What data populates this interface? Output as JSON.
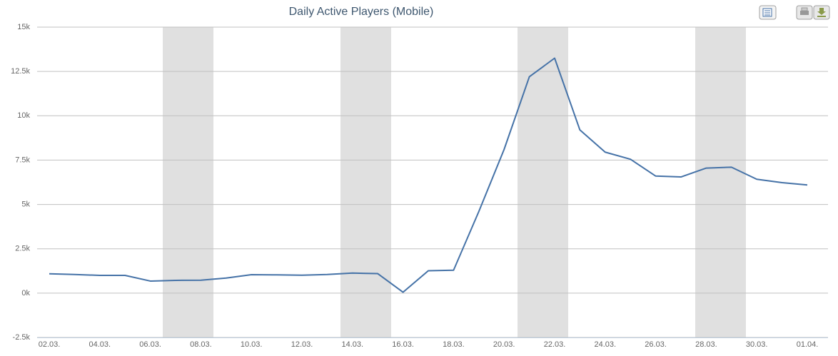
{
  "chart_data": {
    "type": "line",
    "title": "Daily Active Players (Mobile)",
    "categories": [
      "02.03.",
      null,
      "04.03.",
      null,
      "06.03.",
      null,
      "08.03.",
      null,
      "10.03.",
      null,
      "12.03.",
      null,
      "14.03.",
      null,
      "16.03.",
      null,
      "18.03.",
      null,
      "20.03.",
      null,
      "22.03.",
      null,
      "24.03.",
      null,
      "26.03.",
      null,
      "28.03.",
      null,
      "30.03.",
      null,
      "01.04."
    ],
    "series": [
      {
        "color": "#4572a7",
        "values": [
          1090,
          1050,
          1000,
          1000,
          680,
          720,
          730,
          850,
          1040,
          1030,
          1010,
          1050,
          1130,
          1100,
          50,
          1260,
          1290,
          4600,
          8100,
          12200,
          13250,
          9200,
          7950,
          7550,
          6600,
          6550,
          7050,
          7100,
          6420,
          6230,
          6100
        ]
      }
    ],
    "ylim": [
      -2500,
      15000
    ],
    "yticks": [
      {
        "value": -2500,
        "label": "-2.5k"
      },
      {
        "value": 0,
        "label": "0k"
      },
      {
        "value": 2500,
        "label": "2.5k"
      },
      {
        "value": 5000,
        "label": "5k"
      },
      {
        "value": 7500,
        "label": "7.5k"
      },
      {
        "value": 10000,
        "label": "10k"
      },
      {
        "value": 12500,
        "label": "12.5k"
      },
      {
        "value": 15000,
        "label": "15k"
      }
    ],
    "grid": true
  }
}
